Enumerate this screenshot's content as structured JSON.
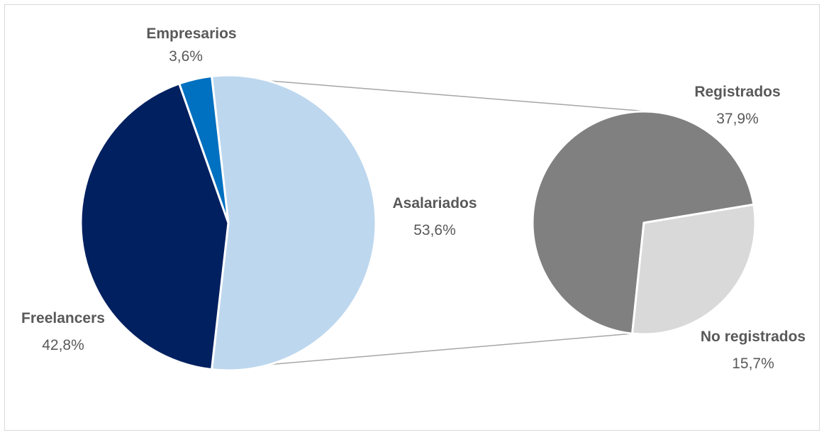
{
  "chart_data": {
    "type": "bar-of-pie",
    "title": "",
    "main_pie": {
      "slices": [
        {
          "label": "Asalariados",
          "value_label": "53,6%",
          "value": 53.6,
          "color": "#bdd7ee"
        },
        {
          "label": "Freelancers",
          "value_label": "42,8%",
          "value": 42.8,
          "color": "#002060"
        },
        {
          "label": "Empresarios",
          "value_label": "3,6%",
          "value": 3.6,
          "color": "#0070c0"
        }
      ]
    },
    "secondary_pie": {
      "parent": "Asalariados",
      "slices": [
        {
          "label": "Registrados",
          "value_label": "37,9%",
          "value": 37.9,
          "color": "#808080"
        },
        {
          "label": "No registrados",
          "value_label": "15,7%",
          "value": 15.7,
          "color": "#d9d9d9"
        }
      ]
    },
    "connector_color": "#a6a6a6",
    "slice_border_color": "#ffffff",
    "legend": "none"
  }
}
